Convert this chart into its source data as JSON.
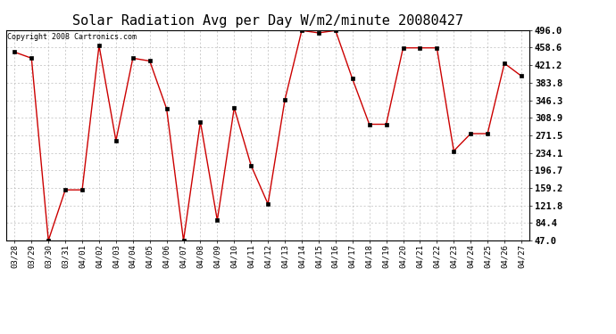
{
  "title": "Solar Radiation Avg per Day W/m2/minute 20080427",
  "copyright": "Copyright 2008 Cartronics.com",
  "x_labels": [
    "03/28",
    "03/29",
    "03/30",
    "03/31",
    "04/01",
    "04/02",
    "04/03",
    "04/04",
    "04/05",
    "04/06",
    "04/07",
    "04/08",
    "04/09",
    "04/10",
    "04/11",
    "04/12",
    "04/13",
    "04/14",
    "04/15",
    "04/16",
    "04/17",
    "04/18",
    "04/19",
    "04/20",
    "04/21",
    "04/22",
    "04/23",
    "04/24",
    "04/25",
    "04/26",
    "04/27"
  ],
  "y_values": [
    449.0,
    436.0,
    47.0,
    155.0,
    155.0,
    463.0,
    260.0,
    436.0,
    430.0,
    328.0,
    47.0,
    300.0,
    90.0,
    330.0,
    207.0,
    125.0,
    347.0,
    495.0,
    490.0,
    495.0,
    392.0,
    295.0,
    295.0,
    458.0,
    458.0,
    458.0,
    238.0,
    275.0,
    275.0,
    425.0,
    398.0
  ],
  "line_color": "#cc0000",
  "marker": "s",
  "marker_size": 2.5,
  "marker_color": "#000000",
  "background_color": "#ffffff",
  "grid_color": "#bbbbbb",
  "y_min": 47.0,
  "y_max": 496.0,
  "y_ticks": [
    47.0,
    84.4,
    121.8,
    159.2,
    196.7,
    234.1,
    271.5,
    308.9,
    346.3,
    383.8,
    421.2,
    458.6,
    496.0
  ],
  "title_fontsize": 11,
  "copyright_fontsize": 6,
  "tick_fontsize": 6.5,
  "ytick_fontsize": 7.5
}
